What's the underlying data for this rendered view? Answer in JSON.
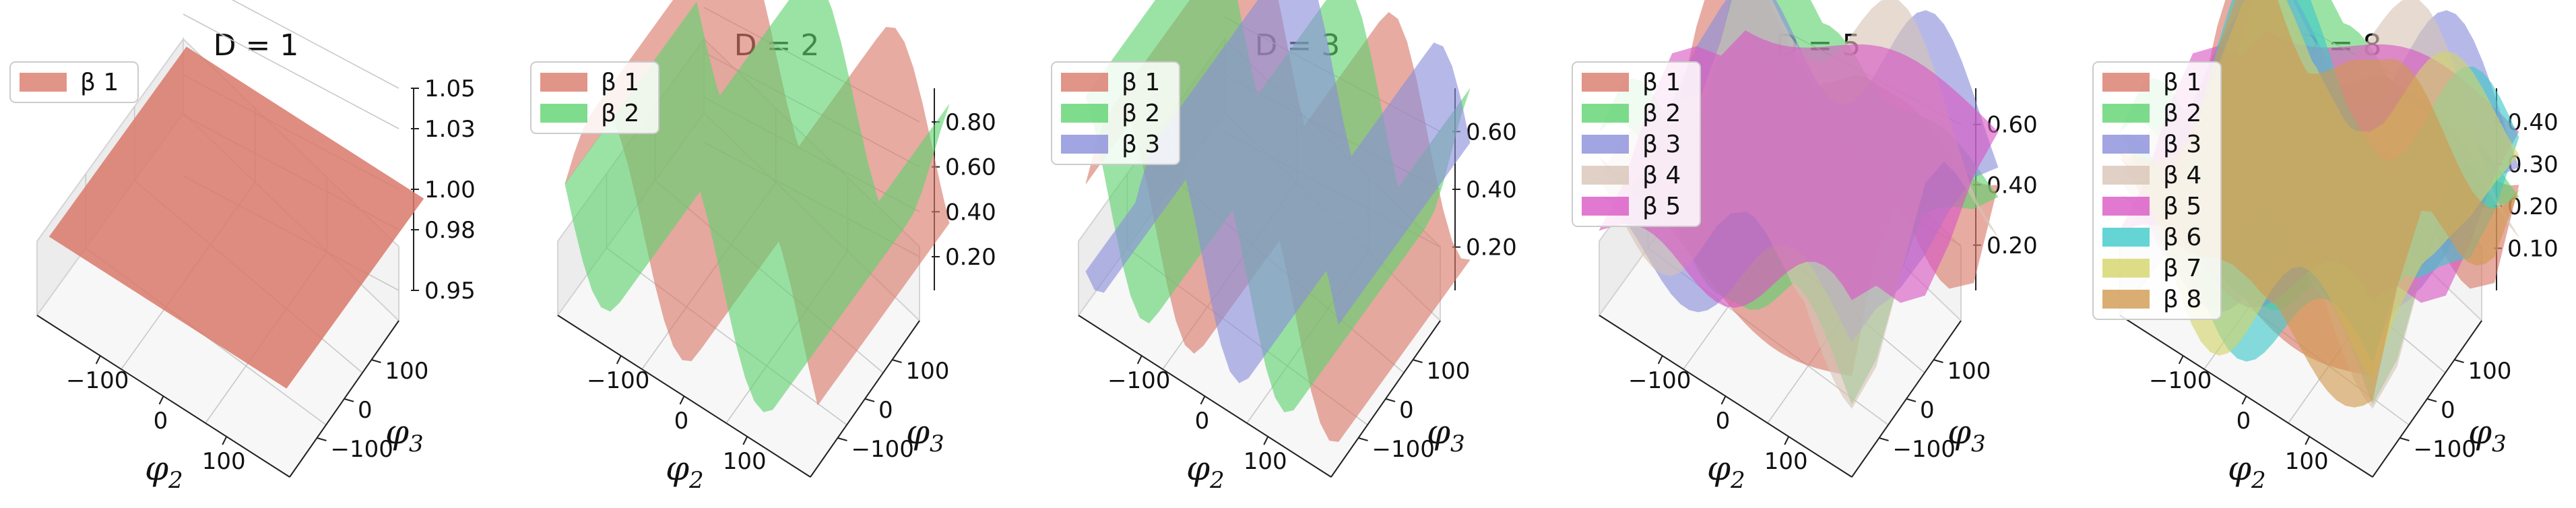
{
  "chart_data": [
    {
      "type": "surface3d",
      "title": "D = 1",
      "xlabel": "φ",
      "xlabel_sub": "2",
      "ylabel": "φ",
      "ylabel_sub": "3",
      "x_ticks": [
        "−100",
        "0",
        "100"
      ],
      "y_ticks": [
        "−100",
        "0",
        "100"
      ],
      "z_ticks": [
        "0.95",
        "0.98",
        "1.00",
        "1.03",
        "1.05"
      ],
      "zlim": [
        0.95,
        1.05
      ],
      "legend_position": "top-left",
      "series": [
        {
          "name": "β 1",
          "color": "#d9796a",
          "value_range": [
            1.0,
            1.0
          ]
        }
      ]
    },
    {
      "type": "surface3d",
      "title": "D = 2",
      "xlabel": "φ",
      "xlabel_sub": "2",
      "ylabel": "φ",
      "ylabel_sub": "3",
      "x_ticks": [
        "−100",
        "0",
        "100"
      ],
      "y_ticks": [
        "−100",
        "0",
        "100"
      ],
      "z_ticks": [
        "0.20",
        "0.40",
        "0.60",
        "0.80"
      ],
      "zlim": [
        0.05,
        0.95
      ],
      "legend_position": "top-left",
      "series": [
        {
          "name": "β 1",
          "color": "#d9796a",
          "value_range": [
            0.1,
            0.9
          ]
        },
        {
          "name": "β 2",
          "color": "#5fd36f",
          "value_range": [
            0.1,
            0.9
          ]
        }
      ]
    },
    {
      "type": "surface3d",
      "title": "D = 3",
      "xlabel": "φ",
      "xlabel_sub": "2",
      "ylabel": "φ",
      "ylabel_sub": "3",
      "x_ticks": [
        "−100",
        "0",
        "100"
      ],
      "y_ticks": [
        "−100",
        "0",
        "100"
      ],
      "z_ticks": [
        "0.20",
        "0.40",
        "0.60"
      ],
      "zlim": [
        0.05,
        0.75
      ],
      "legend_position": "top-left",
      "series": [
        {
          "name": "β 1",
          "color": "#d9796a",
          "value_range": [
            0.1,
            0.7
          ]
        },
        {
          "name": "β 2",
          "color": "#5fd36f",
          "value_range": [
            0.1,
            0.7
          ]
        },
        {
          "name": "β 3",
          "color": "#8a8fdb",
          "value_range": [
            0.1,
            0.7
          ]
        }
      ]
    },
    {
      "type": "surface3d",
      "title": "D = 5",
      "xlabel": "φ",
      "xlabel_sub": "2",
      "ylabel": "φ",
      "ylabel_sub": "3",
      "x_ticks": [
        "−100",
        "0",
        "100"
      ],
      "y_ticks": [
        "−100",
        "0",
        "100"
      ],
      "z_ticks": [
        "0.20",
        "0.40",
        "0.60"
      ],
      "zlim": [
        0.05,
        0.72
      ],
      "legend_position": "top-left",
      "series": [
        {
          "name": "β 1",
          "color": "#d9796a",
          "value_range": [
            0.05,
            0.45
          ]
        },
        {
          "name": "β 2",
          "color": "#5fd36f",
          "value_range": [
            0.05,
            0.55
          ]
        },
        {
          "name": "β 3",
          "color": "#8a8fdb",
          "value_range": [
            0.05,
            0.45
          ]
        },
        {
          "name": "β 4",
          "color": "#d8c4b6",
          "value_range": [
            0.05,
            0.5
          ]
        },
        {
          "name": "β 5",
          "color": "#d957c4",
          "value_range": [
            0.05,
            0.7
          ]
        }
      ]
    },
    {
      "type": "surface3d",
      "title": "D = 8",
      "xlabel": "φ",
      "xlabel_sub": "2",
      "ylabel": "φ",
      "ylabel_sub": "3",
      "x_ticks": [
        "−100",
        "0",
        "100"
      ],
      "y_ticks": [
        "−100",
        "0",
        "100"
      ],
      "z_ticks": [
        "0.10",
        "0.20",
        "0.30",
        "0.40"
      ],
      "zlim": [
        0.0,
        0.48
      ],
      "legend_position": "top-left",
      "series": [
        {
          "name": "β 1",
          "color": "#d9796a",
          "value_range": [
            0.02,
            0.3
          ]
        },
        {
          "name": "β 2",
          "color": "#5fd36f",
          "value_range": [
            0.02,
            0.45
          ]
        },
        {
          "name": "β 3",
          "color": "#8a8fdb",
          "value_range": [
            0.02,
            0.3
          ]
        },
        {
          "name": "β 4",
          "color": "#d8c4b6",
          "value_range": [
            0.02,
            0.3
          ]
        },
        {
          "name": "β 5",
          "color": "#d957c4",
          "value_range": [
            0.02,
            0.3
          ]
        },
        {
          "name": "β 6",
          "color": "#3fc9c9",
          "value_range": [
            0.02,
            0.42
          ]
        },
        {
          "name": "β 7",
          "color": "#d4d46a",
          "value_range": [
            0.02,
            0.3
          ]
        },
        {
          "name": "β 8",
          "color": "#d19a50",
          "value_range": [
            0.02,
            0.35
          ]
        }
      ]
    }
  ]
}
